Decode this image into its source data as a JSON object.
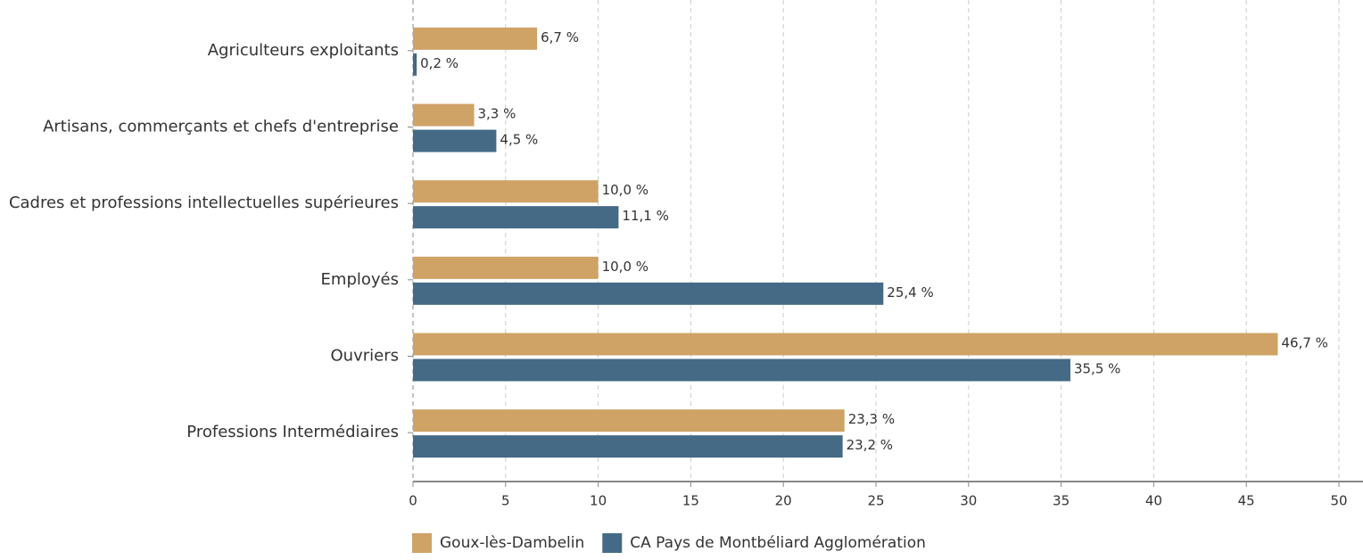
{
  "chart_data": {
    "type": "hbar",
    "categories": [
      "Agriculteurs exploitants",
      "Artisans, commerçants et chefs d'entreprise",
      "Cadres et professions intellectuelles supérieures",
      "Employés",
      "Ouvriers",
      "Professions Intermédiaires"
    ],
    "series": [
      {
        "name": "Goux-lès-Dambelin",
        "color": "#cfa266",
        "values": [
          6.7,
          3.3,
          10.0,
          10.0,
          46.7,
          23.3
        ],
        "value_labels": [
          "6,7 %",
          "3,3 %",
          "10,0 %",
          "10,0 %",
          "46,7 %",
          "23,3 %"
        ]
      },
      {
        "name": "CA Pays de Montbéliard Agglomération",
        "color": "#446a85",
        "values": [
          0.2,
          4.5,
          11.1,
          25.4,
          35.5,
          23.2
        ],
        "value_labels": [
          "0,2 %",
          "4,5 %",
          "11,1 %",
          "25,4 %",
          "35,5 %",
          "23,2 %"
        ]
      }
    ],
    "xlim": [
      0,
      50
    ],
    "xticks": [
      0,
      5,
      10,
      15,
      20,
      25,
      30,
      35,
      40,
      45,
      50
    ],
    "grid": true,
    "legend": "bottom"
  }
}
